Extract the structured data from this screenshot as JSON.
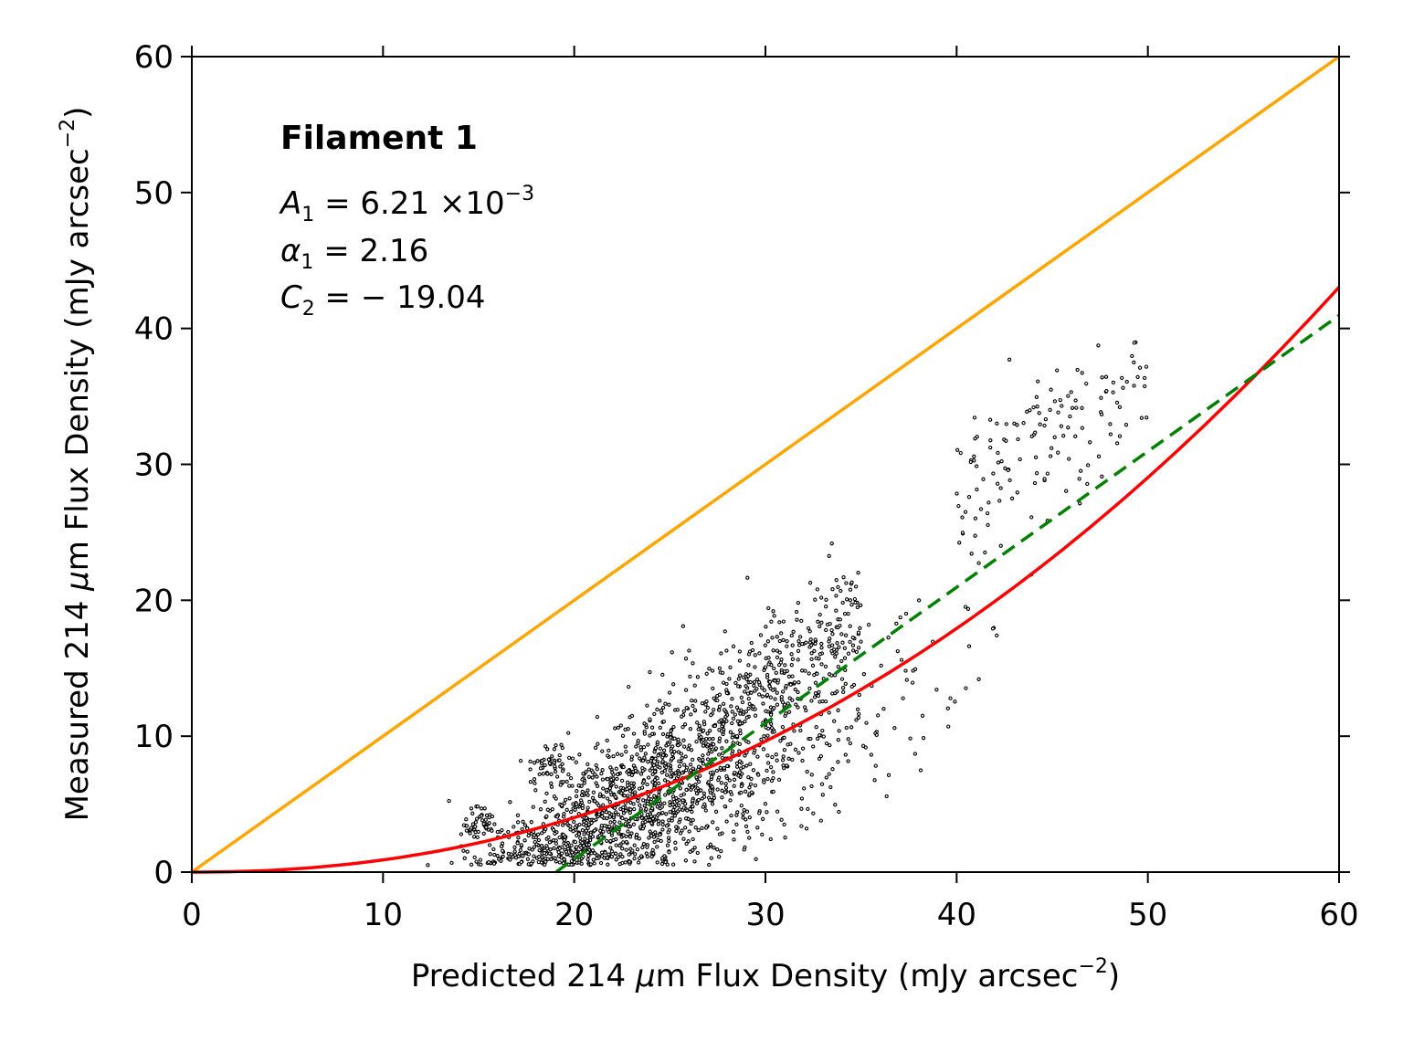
{
  "chart_data": {
    "type": "scatter",
    "xlabel": {
      "pre": "Predicted 214 ",
      "mu": "μ",
      "post": "m Flux Density (mJy arcsec",
      "sup": "−2",
      "close": ")"
    },
    "ylabel": {
      "pre": "Measured 214 ",
      "mu": "μ",
      "post": "m Flux Density (mJy arcsec",
      "sup": "−2",
      "close": ")"
    },
    "xlim": [
      0,
      60
    ],
    "ylim": [
      0,
      60
    ],
    "xticks": [
      0,
      10,
      20,
      30,
      40,
      50,
      60
    ],
    "yticks": [
      0,
      10,
      20,
      30,
      40,
      50,
      60
    ],
    "grid": false,
    "annotation": {
      "title": "Filament 1",
      "line1": {
        "sym": "A",
        "sub": "1",
        "mid": " = 6.21 ×10",
        "sup": "−3"
      },
      "line2": {
        "sym": "α",
        "sub": "1",
        "mid": " = 2.16"
      },
      "line3": {
        "sym": "C",
        "sub": "2",
        "mid": " = − 19.04"
      }
    },
    "series": [
      {
        "kind": "line",
        "style": "solid",
        "color": "#ffa500",
        "x": [
          0,
          60
        ],
        "y": [
          0,
          60
        ]
      },
      {
        "kind": "line",
        "style": "solid",
        "color": "#ff0000",
        "function": "power",
        "A": 0.00621,
        "alpha": 2.16,
        "x_range": [
          0,
          60
        ]
      },
      {
        "kind": "line",
        "style": "dashed",
        "color": "#008000",
        "x": [
          19.04,
          60
        ],
        "y": [
          0,
          40.96
        ]
      },
      {
        "kind": "scatter",
        "color": "#000000",
        "x_range": [
          11.5,
          53
        ],
        "y_range": [
          0.5,
          39.2
        ]
      }
    ]
  }
}
